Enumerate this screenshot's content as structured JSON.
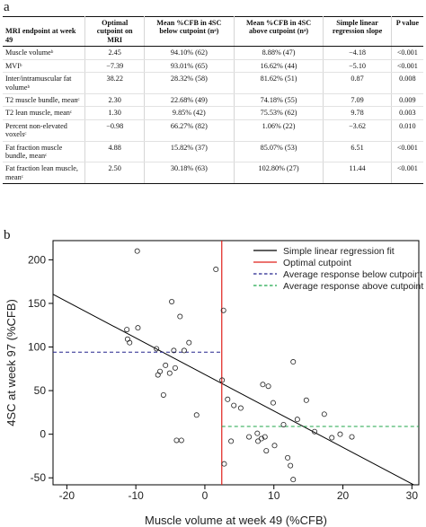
{
  "panel_a": {
    "label": "a",
    "table": {
      "headers": [
        "MRI endpoint at week 49",
        "Optimal cutpoint on MRI",
        "Mean %CFB in 4SC below cutpoint (nᵃ)",
        "Mean %CFB in 4SC above cutpoint (nᵃ)",
        "Simple linear regression slope",
        "P value"
      ],
      "rows": [
        [
          "Muscle volumeᵇ",
          "2.45",
          "94.10% (62)",
          "8.88% (47)",
          "−4.18",
          "<0.001"
        ],
        [
          "MVIᵇ",
          "−7.39",
          "93.01% (65)",
          "16.62% (44)",
          "−5.10",
          "<0.001"
        ],
        [
          "Inter/intramuscular fat volumeᵇ",
          "38.22",
          "28.32% (58)",
          "81.62% (51)",
          "0.87",
          "0.008"
        ],
        [
          "T2 muscle bundle, meanᶜ",
          "2.30",
          "22.68% (49)",
          "74.18% (55)",
          "7.09",
          "0.009"
        ],
        [
          "T2 lean muscle, meanᶜ",
          "1.30",
          "9.85% (42)",
          "75.53% (62)",
          "9.78",
          "0.003"
        ],
        [
          "Percent non-elevated voxelsᶜ",
          "−0.98",
          "66.27% (82)",
          "1.06% (22)",
          "−3.62",
          "0.010"
        ],
        [
          "Fat fraction muscle bundle, meanᶜ",
          "4.88",
          "15.82% (37)",
          "85.07% (53)",
          "6.51",
          "<0.001"
        ],
        [
          "Fat fraction lean muscle, meanᶜ",
          "2.50",
          "30.18% (63)",
          "102.80% (27)",
          "11.44",
          "<0.001"
        ]
      ]
    }
  },
  "panel_b": {
    "label": "b",
    "chart_data": {
      "type": "scatter",
      "xlabel": "Muscle volume at week 49 (%CFB)",
      "ylabel": "4SC at week 97 (%CFB)",
      "xlim": [
        -22,
        31
      ],
      "ylim": [
        -58,
        222
      ],
      "x_ticks": [
        -20,
        -10,
        0,
        10,
        20,
        30
      ],
      "y_ticks": [
        -50,
        0,
        50,
        100,
        150,
        200
      ],
      "grid": false,
      "legend_position": "top-right",
      "legend": [
        {
          "label": "Simple linear regression fit",
          "color": "#000000",
          "style": "solid"
        },
        {
          "label": "Optimal cutpoint",
          "color": "#e0201b",
          "style": "solid"
        },
        {
          "label": "Average response below cutpoint",
          "color": "#23238e",
          "style": "dashed"
        },
        {
          "label": "Average response above cutpoint",
          "color": "#1fa64a",
          "style": "dashed"
        }
      ],
      "regression": {
        "slope": -4.18,
        "intercept": 68.5
      },
      "cutpoint_x": 2.45,
      "mean_below": 94.1,
      "mean_above": 8.88,
      "points": [
        {
          "x": -9.8,
          "y": 210
        },
        {
          "x": -11.3,
          "y": 120
        },
        {
          "x": -9.7,
          "y": 122
        },
        {
          "x": -11.2,
          "y": 109
        },
        {
          "x": -10.9,
          "y": 105
        },
        {
          "x": -7.0,
          "y": 98
        },
        {
          "x": -6.5,
          "y": 72
        },
        {
          "x": -6.8,
          "y": 68
        },
        {
          "x": -5.7,
          "y": 79
        },
        {
          "x": -5.1,
          "y": 70
        },
        {
          "x": -4.5,
          "y": 96
        },
        {
          "x": -4.3,
          "y": 76
        },
        {
          "x": -3.6,
          "y": 135
        },
        {
          "x": -3.0,
          "y": 96
        },
        {
          "x": -2.3,
          "y": 105
        },
        {
          "x": -4.8,
          "y": 152
        },
        {
          "x": -6.0,
          "y": 45
        },
        {
          "x": -1.2,
          "y": 22
        },
        {
          "x": -3.4,
          "y": -7
        },
        {
          "x": -4.1,
          "y": -7
        },
        {
          "x": 1.6,
          "y": 189
        },
        {
          "x": 2.7,
          "y": 142
        },
        {
          "x": 2.5,
          "y": 62
        },
        {
          "x": 3.3,
          "y": 40
        },
        {
          "x": 4.2,
          "y": 33
        },
        {
          "x": 2.8,
          "y": -34
        },
        {
          "x": 8.4,
          "y": 57
        },
        {
          "x": 9.2,
          "y": 55
        },
        {
          "x": 9.9,
          "y": 36
        },
        {
          "x": 12.8,
          "y": 83
        },
        {
          "x": 14.7,
          "y": 39
        },
        {
          "x": 11.4,
          "y": 11
        },
        {
          "x": 13.4,
          "y": 17
        },
        {
          "x": 15.9,
          "y": 3
        },
        {
          "x": 17.3,
          "y": 23
        },
        {
          "x": 18.4,
          "y": -4
        },
        {
          "x": 19.6,
          "y": 0
        },
        {
          "x": 21.3,
          "y": -3
        },
        {
          "x": 7.6,
          "y": 1
        },
        {
          "x": 8.2,
          "y": -5
        },
        {
          "x": 8.7,
          "y": -3
        },
        {
          "x": 7.7,
          "y": -8
        },
        {
          "x": 8.9,
          "y": -19
        },
        {
          "x": 10.1,
          "y": -13
        },
        {
          "x": 12.0,
          "y": -27
        },
        {
          "x": 12.4,
          "y": -36
        },
        {
          "x": 12.8,
          "y": -52
        },
        {
          "x": 6.4,
          "y": -3
        },
        {
          "x": 5.2,
          "y": 30
        },
        {
          "x": 3.8,
          "y": -8
        }
      ]
    }
  }
}
